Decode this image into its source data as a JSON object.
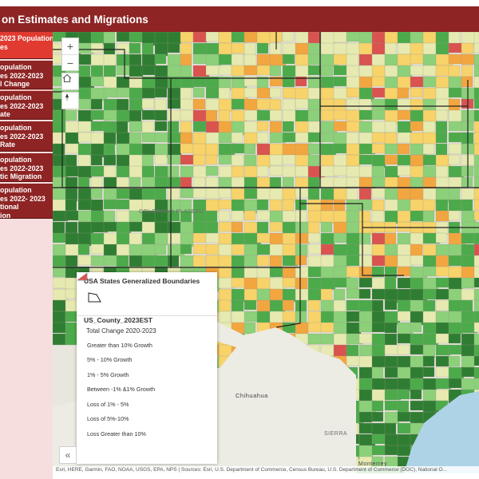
{
  "header": {
    "title": "on Estimates and Migrations"
  },
  "sidebar": {
    "items": [
      {
        "lines": [
          "2023 Population",
          "es"
        ],
        "active": true
      },
      {
        "lines": [
          "opulation",
          "es 2022-2023",
          "l Change"
        ],
        "active": false
      },
      {
        "lines": [
          "opulation",
          "es 2022-2023",
          "ate"
        ],
        "active": false
      },
      {
        "lines": [
          "opulation",
          "es 2022-2023",
          "Rate"
        ],
        "active": false
      },
      {
        "lines": [
          "opulation",
          "es 2022-2023",
          "tic Migration"
        ],
        "active": false
      },
      {
        "lines": [
          "opulation",
          "es 2022- 2023",
          "tional",
          "ion"
        ],
        "active": false
      }
    ]
  },
  "map_controls": {
    "zoom_in": "+",
    "zoom_out": "−",
    "home_icon": "home-icon",
    "compass_icon": "compass-icon",
    "collapse": "«"
  },
  "legend": {
    "states_title": "USA States Generalized Boundaries",
    "county_title": "US_County_2023EST",
    "subtitle": "Total Change 2020-2023",
    "classes": [
      {
        "label": "Greater than 10% Growth",
        "color": "#2f7d32"
      },
      {
        "label": "5% - 10% Growth",
        "color": "#4caa4a"
      },
      {
        "label": "1% - 5% Growth",
        "color": "#8cd07a"
      },
      {
        "label": "Between -1% &1% Growth",
        "color": "#e6eab0"
      },
      {
        "label": "Loss of 1% - 5%",
        "color": "#f7d36a"
      },
      {
        "label": "Loss of 5%-10%",
        "color": "#f2a640"
      },
      {
        "label": "Loss Greater than 10%",
        "color": "#d9534f"
      }
    ]
  },
  "map_labels": {
    "colorado_plateau": "COLORADO PLATEAU",
    "chihuahua": "Chihuahua",
    "sierra": "SIERRA",
    "monterrey": "Monterrey"
  },
  "attribution": "Esri, HERE, Garmin, FAO, NOAA, USGS, EPA, NPS | Sources: Esri, U.S. Department of Commerce, Census Bureau, U.S. Department of Commerce (DOC), National O..."
}
